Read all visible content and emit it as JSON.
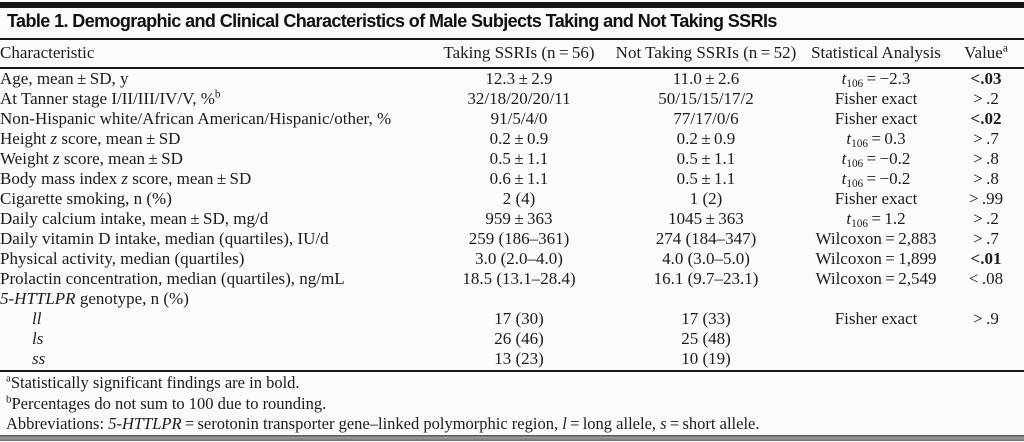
{
  "title": "Table 1. Demographic and Clinical Characteristics of Male Subjects Taking and Not Taking SSRIs",
  "table": {
    "headers": {
      "characteristic": "Characteristic",
      "taking": "Taking SSRIs (n = 56)",
      "not_taking": "Not Taking SSRIs (n = 52)",
      "stat": "Statistical Analysis",
      "value_html": "Value<sup>a</sup>"
    },
    "rows": [
      {
        "label_html": "Age, mean ± SD, y",
        "indent": false,
        "taking": "12.3 ± 2.9",
        "not_taking": "11.0 ± 2.6",
        "stat_html": "<i>t</i><sub>106</sub> = −2.3",
        "value": "<.03",
        "value_bold": true
      },
      {
        "label_html": "At Tanner stage I/II/III/IV/V, %<sup>b</sup>",
        "indent": false,
        "taking": "32/18/20/20/11",
        "not_taking": "50/15/15/17/2",
        "stat_html": "Fisher exact",
        "value": "> .2",
        "value_bold": false
      },
      {
        "label_html": "Non-Hispanic white/African American/Hispanic/other, %",
        "indent": false,
        "taking": "91/5/4/0",
        "not_taking": "77/17/0/6",
        "stat_html": "Fisher exact",
        "value": "<.02",
        "value_bold": true
      },
      {
        "label_html": "Height <i>z</i> score, mean ± SD",
        "indent": false,
        "taking": "0.2 ± 0.9",
        "not_taking": "0.2 ± 0.9",
        "stat_html": "<i>t</i><sub>106</sub> = 0.3",
        "value": "> .7",
        "value_bold": false
      },
      {
        "label_html": "Weight <i>z</i> score, mean ± SD",
        "indent": false,
        "taking": "0.5 ± 1.1",
        "not_taking": "0.5 ± 1.1",
        "stat_html": "<i>t</i><sub>106</sub> = −0.2",
        "value": "> .8",
        "value_bold": false
      },
      {
        "label_html": "Body mass index <i>z</i> score, mean ± SD",
        "indent": false,
        "taking": "0.6 ± 1.1",
        "not_taking": "0.5 ± 1.1",
        "stat_html": "<i>t</i><sub>106</sub> = −0.2",
        "value": "> .8",
        "value_bold": false
      },
      {
        "label_html": "Cigarette smoking, n (%)",
        "indent": false,
        "taking": "2 (4)",
        "not_taking": "1 (2)",
        "stat_html": "Fisher exact",
        "value": "> .99",
        "value_bold": false
      },
      {
        "label_html": "Daily calcium intake, mean ± SD, mg/d",
        "indent": false,
        "taking": "959 ± 363",
        "not_taking": "1045 ± 363",
        "stat_html": "<i>t</i><sub>106</sub> = 1.2",
        "value": "> .2",
        "value_bold": false
      },
      {
        "label_html": "Daily vitamin D intake, median (quartiles), IU/d",
        "indent": false,
        "taking": "259 (186–361)",
        "not_taking": "274 (184–347)",
        "stat_html": "Wilcoxon = 2,883",
        "value": "> .7",
        "value_bold": false
      },
      {
        "label_html": "Physical activity, median (quartiles)",
        "indent": false,
        "taking": "3.0 (2.0–4.0)",
        "not_taking": "4.0 (3.0–5.0)",
        "stat_html": "Wilcoxon = 1,899",
        "value": "<.01",
        "value_bold": true
      },
      {
        "label_html": "Prolactin concentration, median (quartiles), ng/mL",
        "indent": false,
        "taking": "18.5 (13.1–28.4)",
        "not_taking": "16.1 (9.7–23.1)",
        "stat_html": "Wilcoxon = 2,549",
        "value": "< .08",
        "value_bold": false
      },
      {
        "label_html": "<i>5-HTTLPR</i> genotype, n (%)",
        "indent": false,
        "taking": "",
        "not_taking": "",
        "stat_html": "",
        "value": "",
        "value_bold": false
      },
      {
        "label_html": "<i>ll</i>",
        "indent": true,
        "taking": "17 (30)",
        "not_taking": "17 (33)",
        "stat_html": "Fisher exact",
        "value": "> .9",
        "value_bold": false
      },
      {
        "label_html": "<i>ls</i>",
        "indent": true,
        "taking": "26 (46)",
        "not_taking": "25 (48)",
        "stat_html": "",
        "value": "",
        "value_bold": false
      },
      {
        "label_html": "<i>ss</i>",
        "indent": true,
        "taking": "13 (23)",
        "not_taking": "10 (19)",
        "stat_html": "",
        "value": "",
        "value_bold": false
      }
    ]
  },
  "footnotes": [
    {
      "text_html": "<sup>a</sup>Statistically significant findings are in bold."
    },
    {
      "text_html": "<sup>b</sup>Percentages do not sum to 100 due to rounding."
    },
    {
      "text_html": "Abbreviations: <i>5-HTTLPR</i> = serotonin transporter gene–linked polymorphic region, <i>l</i> = long allele, <i>s</i> = short allele."
    }
  ],
  "colors": {
    "text": "#1b1b1b",
    "rule": "#161616",
    "background": "#fbfbf9",
    "bottom_bar": "#6f6f6f"
  }
}
